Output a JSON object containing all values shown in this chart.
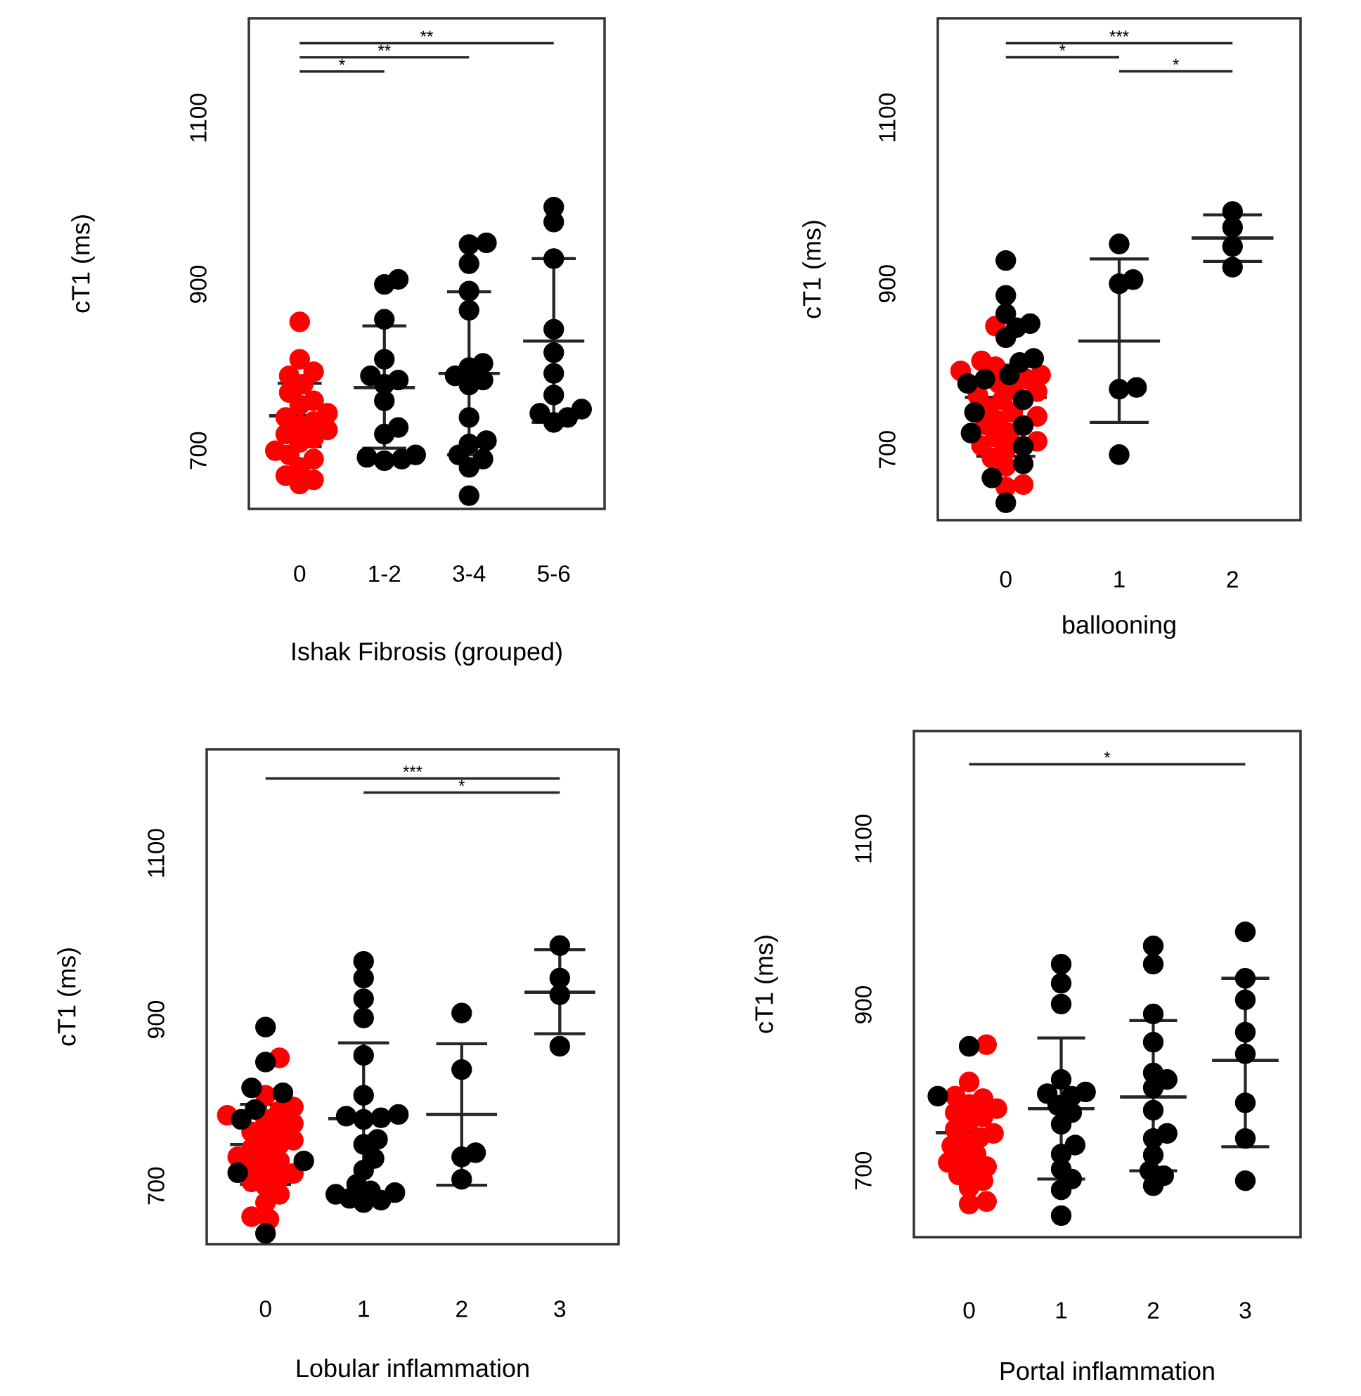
{
  "chart_data": [
    {
      "type": "scatter",
      "categories": [
        "0",
        "1-2",
        "3-4",
        "5-6"
      ],
      "xlabel": "Ishak Fibrosis (grouped)",
      "ylabel": "cT1 (ms)",
      "ylim": [
        630,
        1220
      ],
      "yticks": [
        700,
        900,
        1100
      ],
      "marker": "circle",
      "annotations": [
        "**",
        "**",
        "*"
      ],
      "series": [
        {
          "color": "#ff0000",
          "x": [
            "0",
            "0",
            "0",
            "0",
            "0",
            "0",
            "0",
            "0",
            "0",
            "0",
            "0",
            "0",
            "0",
            "0",
            "0",
            "0",
            "0",
            "0",
            "0",
            "0",
            "0",
            "0",
            "0"
          ],
          "values": [
            855,
            810,
            795,
            790,
            780,
            770,
            760,
            755,
            745,
            740,
            735,
            730,
            725,
            720,
            715,
            710,
            700,
            695,
            690,
            680,
            670,
            665,
            660
          ]
        },
        {
          "color": "#000000",
          "x": [
            "1-2",
            "1-2",
            "1-2",
            "1-2",
            "1-2",
            "1-2",
            "1-2",
            "1-2",
            "1-2",
            "1-2",
            "1-2",
            "1-2",
            "1-2",
            "1-2",
            "3-4",
            "3-4",
            "3-4",
            "3-4",
            "3-4",
            "3-4",
            "3-4",
            "3-4",
            "3-4",
            "3-4",
            "3-4",
            "3-4",
            "3-4",
            "3-4",
            "3-4",
            "3-4",
            "3-4",
            "5-6",
            "5-6",
            "5-6",
            "5-6",
            "5-6",
            "5-6",
            "5-6",
            "5-6",
            "5-6",
            "5-6",
            "5-6"
          ],
          "values": [
            906,
            900,
            858,
            810,
            790,
            785,
            780,
            760,
            728,
            720,
            695,
            692,
            690,
            688,
            950,
            948,
            925,
            892,
            869,
            805,
            800,
            790,
            785,
            779,
            740,
            712,
            708,
            695,
            690,
            680,
            646,
            993,
            975,
            931,
            846,
            818,
            793,
            767,
            750,
            745,
            740,
            734
          ]
        },
        {
          "type": "box",
          "color": "#262626",
          "boxes": [
            {
              "low": 705,
              "q1": 742,
              "median": 742,
              "q3": 742,
              "high": 781
            },
            {
              "low": 703,
              "q1": 776,
              "median": 776,
              "q3": 776,
              "high": 850
            },
            {
              "low": 695,
              "q1": 793,
              "median": 793,
              "q3": 793,
              "high": 891
            },
            {
              "low": 734,
              "q1": 832,
              "median": 832,
              "q3": 832,
              "high": 931
            }
          ]
        }
      ]
    },
    {
      "type": "scatter",
      "categories": [
        "0",
        "1",
        "2"
      ],
      "xlabel": "ballooning",
      "ylabel": "cT1 (ms)",
      "ylim": [
        615,
        1220
      ],
      "yticks": [
        700,
        900,
        1100
      ],
      "marker": "circle",
      "annotations": [
        "***",
        "*",
        "*"
      ],
      "series": [
        {
          "color": "#ff0000",
          "x": [
            "0",
            "0",
            "0",
            "0",
            "0",
            "0",
            "0",
            "0",
            "0",
            "0",
            "0",
            "0",
            "0",
            "0",
            "0",
            "0",
            "0",
            "0",
            "0",
            "0",
            "0",
            "0",
            "0",
            "0",
            "0"
          ],
          "values": [
            849,
            807,
            800,
            795,
            790,
            785,
            780,
            775,
            770,
            765,
            760,
            750,
            745,
            740,
            735,
            730,
            720,
            715,
            710,
            705,
            700,
            690,
            680,
            658,
            655
          ]
        },
        {
          "color": "#000000",
          "x": [
            "0",
            "0",
            "0",
            "0",
            "0",
            "0",
            "0",
            "0",
            "0",
            "0",
            "0",
            "0",
            "0",
            "0",
            "0",
            "0",
            "0",
            "0",
            "0",
            "1",
            "1",
            "1",
            "1",
            "1",
            "1",
            "2",
            "2",
            "2",
            "2"
          ],
          "values": [
            928,
            886,
            864,
            852,
            847,
            835,
            810,
            805,
            790,
            785,
            780,
            760,
            745,
            729,
            720,
            704,
            683,
            666,
            636,
            948,
            905,
            900,
            775,
            773,
            694,
            987,
            968,
            945,
            920
          ]
        },
        {
          "type": "box",
          "color": "#262626",
          "boxes": [
            {
              "low": 692,
              "q1": 763,
              "median": 763,
              "q3": 763,
              "high": 802
            },
            {
              "low": 733,
              "q1": 831,
              "median": 831,
              "q3": 831,
              "high": 930
            },
            {
              "low": 927,
              "q1": 955,
              "median": 955,
              "q3": 955,
              "high": 983
            }
          ]
        }
      ]
    },
    {
      "type": "scatter",
      "categories": [
        "0",
        "1",
        "2",
        "3"
      ],
      "xlabel": "Lobular inflammation",
      "ylabel": "cT1 (ms)",
      "ylim": [
        630,
        1225
      ],
      "yticks": [
        700,
        900,
        1100
      ],
      "marker": "circle",
      "annotations": [
        "***",
        "*"
      ],
      "series": [
        {
          "color": "#ff0000",
          "x": [
            "0",
            "0",
            "0",
            "0",
            "0",
            "0",
            "0",
            "0",
            "0",
            "0",
            "0",
            "0",
            "0",
            "0",
            "0",
            "0",
            "0",
            "0",
            "0",
            "0",
            "0",
            "0",
            "0",
            "0",
            "0",
            "0"
          ],
          "values": [
            854,
            809,
            795,
            790,
            785,
            780,
            775,
            770,
            765,
            760,
            755,
            750,
            745,
            740,
            735,
            730,
            725,
            720,
            715,
            710,
            705,
            700,
            690,
            680,
            663,
            660
          ]
        },
        {
          "color": "#000000",
          "x": [
            "0",
            "0",
            "0",
            "0",
            "0",
            "0",
            "0",
            "0",
            "0",
            "1",
            "1",
            "1",
            "1",
            "1",
            "1",
            "1",
            "1",
            "1",
            "1",
            "1",
            "1",
            "1",
            "1",
            "1",
            "1",
            "1",
            "1",
            "1",
            "1",
            "1",
            "2",
            "2",
            "2",
            "2",
            "2",
            "3",
            "3",
            "3",
            "3"
          ],
          "values": [
            891,
            849,
            818,
            812,
            792,
            780,
            730,
            716,
            643,
            970,
            950,
            925,
            902,
            857,
            809,
            786,
            784,
            782,
            780,
            756,
            750,
            733,
            719,
            702,
            694,
            692,
            690,
            685,
            683,
            680,
            908,
            840,
            740,
            735,
            708,
            989,
            950,
            930,
            868
          ]
        },
        {
          "type": "box",
          "color": "#262626",
          "boxes": [
            {
              "low": 702,
              "q1": 750,
              "median": 750,
              "q3": 750,
              "high": 798
            },
            {
              "low": 690,
              "q1": 781,
              "median": 781,
              "q3": 781,
              "high": 872
            },
            {
              "low": 701,
              "q1": 786,
              "median": 786,
              "q3": 786,
              "high": 871
            },
            {
              "low": 883,
              "q1": 933,
              "median": 933,
              "q3": 933,
              "high": 984
            }
          ]
        }
      ]
    },
    {
      "type": "scatter",
      "categories": [
        "0",
        "1",
        "2",
        "3"
      ],
      "xlabel": "Portal inflammation",
      "ylabel": "cT1 (ms)",
      "ylim": [
        620,
        1230
      ],
      "yticks": [
        700,
        900,
        1100
      ],
      "marker": "circle",
      "annotations": [
        "*"
      ],
      "series": [
        {
          "color": "#ff0000",
          "x": [
            "0",
            "0",
            "0",
            "0",
            "0",
            "0",
            "0",
            "0",
            "0",
            "0",
            "0",
            "0",
            "0",
            "0",
            "0",
            "0",
            "0",
            "0",
            "0",
            "0",
            "0",
            "0",
            "0",
            "0"
          ],
          "values": [
            852,
            807,
            790,
            787,
            780,
            775,
            770,
            765,
            760,
            750,
            745,
            740,
            735,
            730,
            720,
            715,
            710,
            705,
            700,
            695,
            688,
            680,
            663,
            660
          ]
        },
        {
          "color": "#000000",
          "x": [
            "0",
            "0",
            "1",
            "1",
            "1",
            "1",
            "1",
            "1",
            "1",
            "1",
            "1",
            "1",
            "1",
            "1",
            "1",
            "1",
            "1",
            "1",
            "2",
            "2",
            "2",
            "2",
            "2",
            "2",
            "2",
            "2",
            "2",
            "2",
            "2",
            "2",
            "2",
            "2",
            "3",
            "3",
            "3",
            "3",
            "3",
            "3",
            "3",
            "3"
          ],
          "values": [
            850,
            790,
            949,
            926,
            901,
            810,
            795,
            793,
            790,
            779,
            770,
            756,
            731,
            720,
            702,
            690,
            677,
            646,
            971,
            949,
            889,
            855,
            818,
            810,
            800,
            773,
            745,
            739,
            719,
            700,
            694,
            682,
            988,
            932,
            906,
            867,
            841,
            782,
            739,
            688
          ]
        },
        {
          "type": "box",
          "color": "#262626",
          "boxes": [
            {
              "low": 705,
              "q1": 746,
              "median": 746,
              "q3": 746,
              "high": 787
            },
            {
              "low": 690,
              "q1": 775,
              "median": 775,
              "q3": 775,
              "high": 860
            },
            {
              "low": 700,
              "q1": 789,
              "median": 789,
              "q3": 789,
              "high": 881
            },
            {
              "low": 729,
              "q1": 833,
              "median": 833,
              "q3": 833,
              "high": 932
            }
          ]
        }
      ]
    }
  ]
}
